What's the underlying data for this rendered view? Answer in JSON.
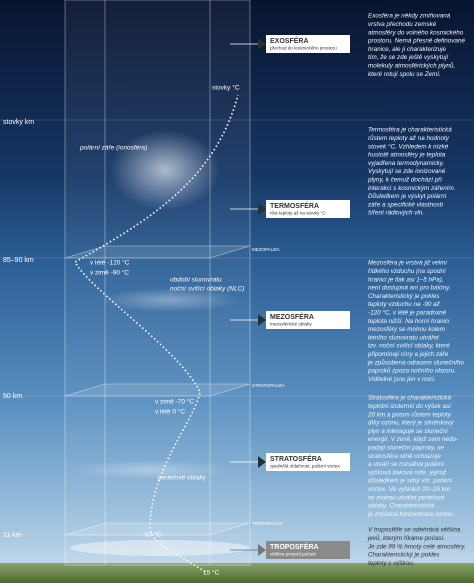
{
  "altitudes": [
    "stovky km",
    "85–90 km",
    "50 km",
    "11 km"
  ],
  "boundaries": [
    "MEZOPAUZA",
    "STRATOPAUZA",
    "TROPOPAUZA"
  ],
  "annotations": {
    "temperatures": [
      "stovky °C",
      "v létě -120 °C",
      "v zimě -90 °C",
      "v zimě -70 °C",
      "v létě 0 °C",
      "-57 °C",
      "15 °C"
    ],
    "aurora": "polární záře (ionosféra)",
    "nlc": [
      "období slunovratu",
      "noční svítící oblaky (NLC)"
    ],
    "nacreous": "perleťové oblaky"
  },
  "layers": [
    {
      "name": "EXOSFÉRA",
      "subtitle": "přechod do kosmického prostoru",
      "description": [
        "Exosféra je někdy zmiňovaná",
        "vrstva přechodu zemské",
        "atmosféry do volného kosmického",
        "prostoru. Nemá přesně definované",
        "hranice, ale ji charakterizuje",
        "tím, že se zde ještě vyskytují",
        "molekuly atmosférických plynů,",
        "které rotují spolu se Zemí."
      ]
    },
    {
      "name": "TERMOSFÉRA",
      "subtitle": "růst teploty až na stovky °C",
      "description": [
        "Termosféra je charakteristická",
        "růstem teploty až na hodnoty",
        "stovek °C. Vzhledem k nízké",
        "hustotě atmosféry je teplota",
        "vyjadřena termodynamicky.",
        "Vyskytují se zde ionizované",
        "plyny, k čemuž dochází při",
        "interakci s kosmickým zářením.",
        "Důsledkem je výskyt polární",
        "záře a specifické vlastnosti",
        "šíření rádiových vln."
      ]
    },
    {
      "name": "MEZOSFÉRA",
      "subtitle": "mezosférické oblaky",
      "description": [
        "Mezosféra je vrstva již velmi",
        "řídkého vzduchu (na spodní",
        "hranici je tlak asi 1–5 hPa),",
        "není dostupná ani pro balóny.",
        "Charakteristický je pokles",
        "teploty vzduchu na -90 až",
        "-120 °C, v létě je paradoxně",
        "teplota nižší. Na horní hranici",
        "mezosféry se mohou kolem",
        "letního slunovratu utvářet",
        "tzv. noční svítící oblaky, které",
        "připomínají cirry a jejich záře",
        "je způsobena odrazem slunečního",
        "paprsků zpoza nočního obzoru.",
        "Viditelné jsou jen v noci."
      ]
    },
    {
      "name": "STRATOSFÉRA",
      "subtitle": "ojedinělá oblačnost, polární vortex",
      "description": [
        "Stratosféra je charakteristická",
        "teplotní izotermií do výšek asi",
        "20 km a potom růstem teploty",
        "díky ozónu, který je silněnkový",
        "plyn a interaguje se sluneční",
        "energií. V zimě, když sem nedo-",
        "padají sluneční paprsky, se",
        "stratosféra silně ochlazuje",
        "a utváří se rozsáhlá polární",
        "výšková tlaková níže, jejímž",
        "důsledkem je silný vítr, polární",
        "vortex. Ve výškách 20–25 km",
        "se mohou utvářet perleťové",
        "oblaky. Charakteristická",
        "je zvýšená koncentrace ozónu."
      ]
    },
    {
      "name": "TROPOSFÉRA",
      "subtitle": "většina projevů počasí",
      "description": [
        "V troposféře se odehrává většina",
        "jevů, kterým říkáme počasí.",
        "Je zde 99 % hmoty celé atmosféry.",
        "Charakteristický je pokles",
        "teploty s výškou."
      ]
    }
  ]
}
